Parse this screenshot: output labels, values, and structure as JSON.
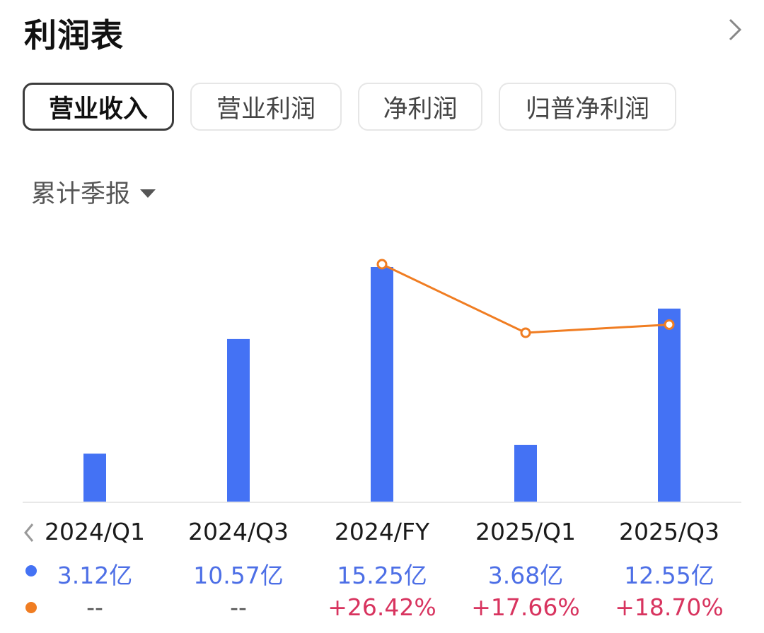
{
  "header": {
    "title": "利润表",
    "chevron_icon": "chevron-right-icon"
  },
  "tabs": [
    {
      "label": "营业收入",
      "active": true
    },
    {
      "label": "营业利润",
      "active": false
    },
    {
      "label": "净利润",
      "active": false
    },
    {
      "label": "归普净利润",
      "active": false
    }
  ],
  "period_selector": {
    "label": "累计季报",
    "icon": "caret-down-icon"
  },
  "chart_data": {
    "type": "bar",
    "categories": [
      "2024/Q1",
      "2024/Q3",
      "2024/FY",
      "2025/Q1",
      "2025/Q3"
    ],
    "series": [
      {
        "values": [
          3.12,
          10.57,
          15.25,
          3.68,
          12.55
        ],
        "unit": "亿",
        "labels": [
          "3.12亿",
          "10.57亿",
          "15.25亿",
          "3.68亿",
          "12.55亿"
        ],
        "color": "#4472f4",
        "type": "bar"
      },
      {
        "values": [
          null,
          null,
          26.42,
          17.66,
          18.7
        ],
        "unit": "%",
        "labels": [
          "--",
          "--",
          "+26.42%",
          "+17.66%",
          "+18.70%"
        ],
        "color": "#f07d22",
        "type": "line"
      }
    ],
    "legend_markers": [
      "blue-dot",
      "orange-dot"
    ],
    "grid": false
  },
  "nav": {
    "prev_icon": "chevron-left-icon"
  }
}
